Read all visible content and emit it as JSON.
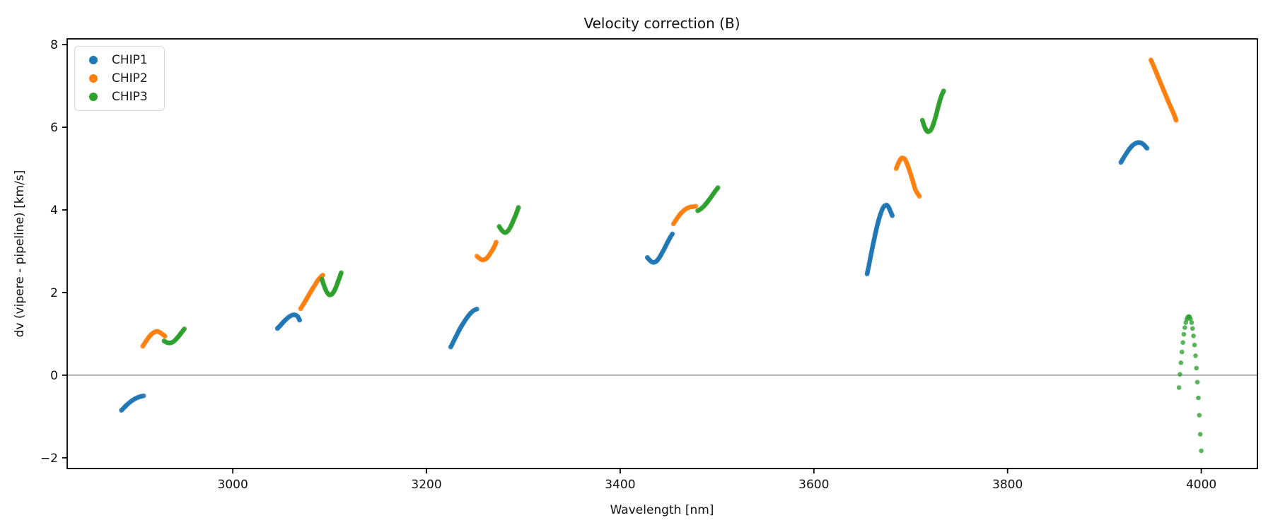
{
  "chart_data": {
    "type": "scatter",
    "title": "Velocity correction (B)",
    "xlabel": "Wavelength [nm]",
    "ylabel": "dv (vipere - pipeline) [km/s]",
    "xlim": [
      2829,
      4058
    ],
    "ylim": [
      -2.26,
      8.14
    ],
    "x_tick_values": [
      3000,
      3200,
      3400,
      3600,
      3800,
      4000
    ],
    "x_tick_labels": [
      "3000",
      "3200",
      "3400",
      "3600",
      "3800",
      "4000"
    ],
    "y_tick_values": [
      -2,
      0,
      2,
      4,
      6,
      8
    ],
    "y_tick_labels": [
      "−2",
      "0",
      "2",
      "4",
      "6",
      "8"
    ],
    "zero_line_y": 0,
    "zero_line_color": "#808080",
    "grid": false,
    "legend": {
      "position": "upper left",
      "entries": [
        "CHIP1",
        "CHIP2",
        "CHIP3"
      ]
    },
    "series": [
      {
        "name": "CHIP1",
        "color": "#1f77b4",
        "segments": [
          {
            "points": [
              [
                2885,
                -0.85
              ],
              [
                2888,
                -0.78
              ],
              [
                2891,
                -0.71
              ],
              [
                2894,
                -0.65
              ],
              [
                2897,
                -0.6
              ],
              [
                2900,
                -0.56
              ],
              [
                2903,
                -0.53
              ],
              [
                2906,
                -0.51
              ],
              [
                2908,
                -0.5
              ]
            ]
          },
          {
            "points": [
              [
                3046,
                1.13
              ],
              [
                3049,
                1.2
              ],
              [
                3052,
                1.28
              ],
              [
                3055,
                1.35
              ],
              [
                3058,
                1.41
              ],
              [
                3061,
                1.45
              ],
              [
                3064,
                1.46
              ],
              [
                3067,
                1.42
              ],
              [
                3069,
                1.33
              ]
            ]
          },
          {
            "points": [
              [
                3225,
                0.68
              ],
              [
                3228,
                0.82
              ],
              [
                3231,
                0.96
              ],
              [
                3234,
                1.1
              ],
              [
                3237,
                1.22
              ],
              [
                3240,
                1.33
              ],
              [
                3243,
                1.43
              ],
              [
                3246,
                1.51
              ],
              [
                3249,
                1.57
              ],
              [
                3252,
                1.6
              ]
            ]
          },
          {
            "points": [
              [
                3428,
                2.85
              ],
              [
                3431,
                2.77
              ],
              [
                3434,
                2.73
              ],
              [
                3437,
                2.75
              ],
              [
                3440,
                2.83
              ],
              [
                3443,
                2.95
              ],
              [
                3446,
                3.08
              ],
              [
                3449,
                3.22
              ],
              [
                3452,
                3.35
              ],
              [
                3454,
                3.42
              ]
            ]
          },
          {
            "points": [
              [
                3655,
                2.45
              ],
              [
                3657,
                2.68
              ],
              [
                3659,
                2.92
              ],
              [
                3661,
                3.15
              ],
              [
                3663,
                3.37
              ],
              [
                3665,
                3.58
              ],
              [
                3667,
                3.76
              ],
              [
                3669,
                3.91
              ],
              [
                3671,
                4.03
              ],
              [
                3673,
                4.1
              ],
              [
                3675,
                4.12
              ],
              [
                3677,
                4.07
              ],
              [
                3679,
                3.97
              ],
              [
                3681,
                3.86
              ]
            ]
          },
          {
            "points": [
              [
                3917,
                5.15
              ],
              [
                3920,
                5.27
              ],
              [
                3923,
                5.38
              ],
              [
                3926,
                5.48
              ],
              [
                3929,
                5.56
              ],
              [
                3932,
                5.61
              ],
              [
                3935,
                5.63
              ],
              [
                3938,
                5.62
              ],
              [
                3941,
                5.57
              ],
              [
                3944,
                5.49
              ]
            ]
          }
        ]
      },
      {
        "name": "CHIP2",
        "color": "#ff7f0e",
        "segments": [
          {
            "points": [
              [
                2907,
                0.7
              ],
              [
                2910,
                0.81
              ],
              [
                2913,
                0.91
              ],
              [
                2916,
                0.99
              ],
              [
                2919,
                1.04
              ],
              [
                2922,
                1.06
              ],
              [
                2925,
                1.03
              ],
              [
                2928,
                0.98
              ],
              [
                2930,
                0.94
              ]
            ]
          },
          {
            "points": [
              [
                3070,
                1.61
              ],
              [
                3073,
                1.72
              ],
              [
                3076,
                1.84
              ],
              [
                3079,
                1.96
              ],
              [
                3082,
                2.08
              ],
              [
                3085,
                2.19
              ],
              [
                3088,
                2.3
              ],
              [
                3091,
                2.38
              ],
              [
                3093,
                2.42
              ]
            ]
          },
          {
            "points": [
              [
                3252,
                2.88
              ],
              [
                3255,
                2.82
              ],
              [
                3258,
                2.79
              ],
              [
                3261,
                2.81
              ],
              [
                3264,
                2.88
              ],
              [
                3267,
                2.99
              ],
              [
                3270,
                3.11
              ],
              [
                3272,
                3.22
              ]
            ]
          },
          {
            "points": [
              [
                3455,
                3.66
              ],
              [
                3458,
                3.77
              ],
              [
                3461,
                3.87
              ],
              [
                3464,
                3.95
              ],
              [
                3467,
                4.01
              ],
              [
                3470,
                4.05
              ],
              [
                3473,
                4.07
              ],
              [
                3476,
                4.08
              ],
              [
                3478,
                4.09
              ]
            ]
          },
          {
            "points": [
              [
                3685,
                5.0
              ],
              [
                3687,
                5.12
              ],
              [
                3689,
                5.21
              ],
              [
                3691,
                5.26
              ],
              [
                3693,
                5.25
              ],
              [
                3695,
                5.18
              ],
              [
                3697,
                5.07
              ],
              [
                3699,
                4.93
              ],
              [
                3701,
                4.78
              ],
              [
                3703,
                4.63
              ],
              [
                3705,
                4.48
              ],
              [
                3707,
                4.4
              ],
              [
                3709,
                4.33
              ]
            ]
          },
          {
            "points": [
              [
                3948,
                7.63
              ],
              [
                3951,
                7.47
              ],
              [
                3954,
                7.3
              ],
              [
                3957,
                7.13
              ],
              [
                3960,
                6.96
              ],
              [
                3963,
                6.79
              ],
              [
                3966,
                6.62
              ],
              [
                3969,
                6.46
              ],
              [
                3972,
                6.3
              ],
              [
                3974,
                6.17
              ]
            ]
          }
        ]
      },
      {
        "name": "CHIP3",
        "color": "#2ca02c",
        "segments": [
          {
            "points": [
              [
                2929,
                0.83
              ],
              [
                2932,
                0.79
              ],
              [
                2935,
                0.78
              ],
              [
                2938,
                0.8
              ],
              [
                2941,
                0.86
              ],
              [
                2944,
                0.94
              ],
              [
                2947,
                1.03
              ],
              [
                2950,
                1.12
              ]
            ]
          },
          {
            "points": [
              [
                3092,
                2.32
              ],
              [
                3094,
                2.18
              ],
              [
                3096,
                2.06
              ],
              [
                3098,
                1.98
              ],
              [
                3100,
                1.94
              ],
              [
                3102,
                1.95
              ],
              [
                3104,
                2.01
              ],
              [
                3106,
                2.1
              ],
              [
                3108,
                2.22
              ],
              [
                3110,
                2.35
              ],
              [
                3112,
                2.48
              ]
            ]
          },
          {
            "points": [
              [
                3275,
                3.6
              ],
              [
                3278,
                3.5
              ],
              [
                3281,
                3.45
              ],
              [
                3284,
                3.49
              ],
              [
                3287,
                3.6
              ],
              [
                3290,
                3.76
              ],
              [
                3293,
                3.93
              ],
              [
                3295,
                4.06
              ]
            ]
          },
          {
            "points": [
              [
                3480,
                3.98
              ],
              [
                3483,
                4.02
              ],
              [
                3486,
                4.08
              ],
              [
                3489,
                4.16
              ],
              [
                3492,
                4.25
              ],
              [
                3495,
                4.35
              ],
              [
                3498,
                4.45
              ],
              [
                3501,
                4.54
              ]
            ]
          },
          {
            "points": [
              [
                3712,
                6.17
              ],
              [
                3714,
                6.03
              ],
              [
                3716,
                5.93
              ],
              [
                3718,
                5.89
              ],
              [
                3720,
                5.91
              ],
              [
                3722,
                5.99
              ],
              [
                3724,
                6.12
              ],
              [
                3726,
                6.28
              ],
              [
                3728,
                6.46
              ],
              [
                3730,
                6.63
              ],
              [
                3732,
                6.78
              ],
              [
                3734,
                6.88
              ]
            ]
          },
          {
            "style": "dots",
            "points": [
              [
                3977,
                -0.3
              ],
              [
                3978,
                0.02
              ],
              [
                3979,
                0.3
              ],
              [
                3980,
                0.56
              ],
              [
                3981,
                0.79
              ],
              [
                3982,
                0.99
              ],
              [
                3983,
                1.15
              ],
              [
                3984,
                1.27
              ],
              [
                3985,
                1.35
              ],
              [
                3986,
                1.4
              ],
              [
                3987,
                1.42
              ],
              [
                3988,
                1.41
              ],
              [
                3989,
                1.36
              ],
              [
                3990,
                1.27
              ],
              [
                3991,
                1.13
              ],
              [
                3992,
                0.95
              ],
              [
                3993,
                0.73
              ],
              [
                3994,
                0.47
              ],
              [
                3995,
                0.17
              ],
              [
                3996,
                -0.17
              ],
              [
                3997,
                -0.55
              ],
              [
                3998,
                -0.97
              ],
              [
                3999,
                -1.43
              ],
              [
                4000,
                -1.83
              ]
            ]
          }
        ]
      }
    ]
  }
}
